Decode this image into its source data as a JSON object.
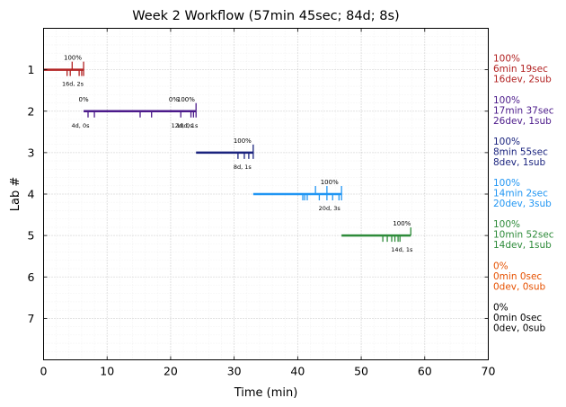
{
  "chart_data": {
    "type": "timeline",
    "title": "Week 2 Workflow (57min 45sec; 84d; 8s)",
    "xlabel": "Time (min)",
    "ylabel": "Lab #",
    "xlim": [
      0,
      70
    ],
    "ylim": [
      0,
      8
    ],
    "x_ticks": [
      "0",
      "10",
      "20",
      "30",
      "40",
      "50",
      "60",
      "70"
    ],
    "y_ticks": [
      "1",
      "2",
      "3",
      "4",
      "5",
      "6",
      "7"
    ],
    "grid": true,
    "labs": [
      {
        "lab": 1,
        "color": "#b22222",
        "start": 0,
        "end": 6.3,
        "dev_ticks": [
          3.7,
          4.2,
          5.6,
          6.0,
          6.3
        ],
        "sub_ticks": [
          4.5,
          6.3
        ],
        "pct_labels": [
          {
            "x": 4.6,
            "text": "100%"
          }
        ],
        "count_label": {
          "x": 4.6,
          "text": "16d, 2s"
        },
        "side": [
          "100%",
          "6min 19sec",
          "16dev, 2sub"
        ]
      },
      {
        "lab": 2,
        "color": "#4b1a8a",
        "start": 6.3,
        "end": 24.0,
        "dev_ticks": [
          7.0,
          8.0,
          15.2,
          17.0,
          21.6,
          23.2,
          23.6,
          24.0
        ],
        "sub_ticks": [
          24.0
        ],
        "pct_labels": [
          {
            "x": 6.3,
            "text": "0%"
          },
          {
            "x": 20.5,
            "text": "0%"
          },
          {
            "x": 22.4,
            "text": "100%"
          }
        ],
        "count_label": {
          "x": 5.8,
          "text": "4d, 0s"
        },
        "count_label_2": {
          "x": 21.8,
          "text": "12d, 0s"
        },
        "count_label_3": {
          "x": 22.6,
          "text": "10d, 1s"
        },
        "side": [
          "100%",
          "17min 37sec",
          "26dev, 1sub"
        ]
      },
      {
        "lab": 3,
        "color": "#1a237e",
        "start": 24.0,
        "end": 33.0,
        "dev_ticks": [
          30.6,
          31.6,
          32.3,
          33.0
        ],
        "sub_ticks": [
          33.0
        ],
        "pct_labels": [
          {
            "x": 31.3,
            "text": "100%"
          }
        ],
        "count_label": {
          "x": 31.3,
          "text": "8d, 1s"
        },
        "side": [
          "100%",
          "8min 55sec",
          "8dev, 1sub"
        ]
      },
      {
        "lab": 4,
        "color": "#2196f3",
        "start": 33.0,
        "end": 46.9,
        "dev_ticks": [
          40.8,
          41.1,
          41.5,
          43.4,
          44.6,
          45.5,
          46.5,
          46.9
        ],
        "sub_ticks": [
          42.8,
          44.6,
          46.9
        ],
        "pct_labels": [
          {
            "x": 45.0,
            "text": "100%"
          }
        ],
        "count_label": {
          "x": 45.0,
          "text": "20d, 3s"
        },
        "side": [
          "100%",
          "14min 2sec",
          "20dev, 3sub"
        ]
      },
      {
        "lab": 5,
        "color": "#2e8b3a",
        "start": 46.9,
        "end": 57.8,
        "dev_ticks": [
          53.4,
          54.1,
          54.8,
          55.3,
          55.8,
          56.1
        ],
        "sub_ticks": [
          57.8
        ],
        "pct_labels": [
          {
            "x": 56.4,
            "text": "100%"
          }
        ],
        "count_label": {
          "x": 56.4,
          "text": "14d, 1s"
        },
        "side": [
          "100%",
          "10min 52sec",
          "14dev, 1sub"
        ]
      },
      {
        "lab": 6,
        "color": "#e65100",
        "side": [
          "0%",
          "0min 0sec",
          "0dev, 0sub"
        ]
      },
      {
        "lab": 7,
        "color": "#000000",
        "side": [
          "0%",
          "0min 0sec",
          "0dev, 0sub"
        ]
      }
    ]
  }
}
